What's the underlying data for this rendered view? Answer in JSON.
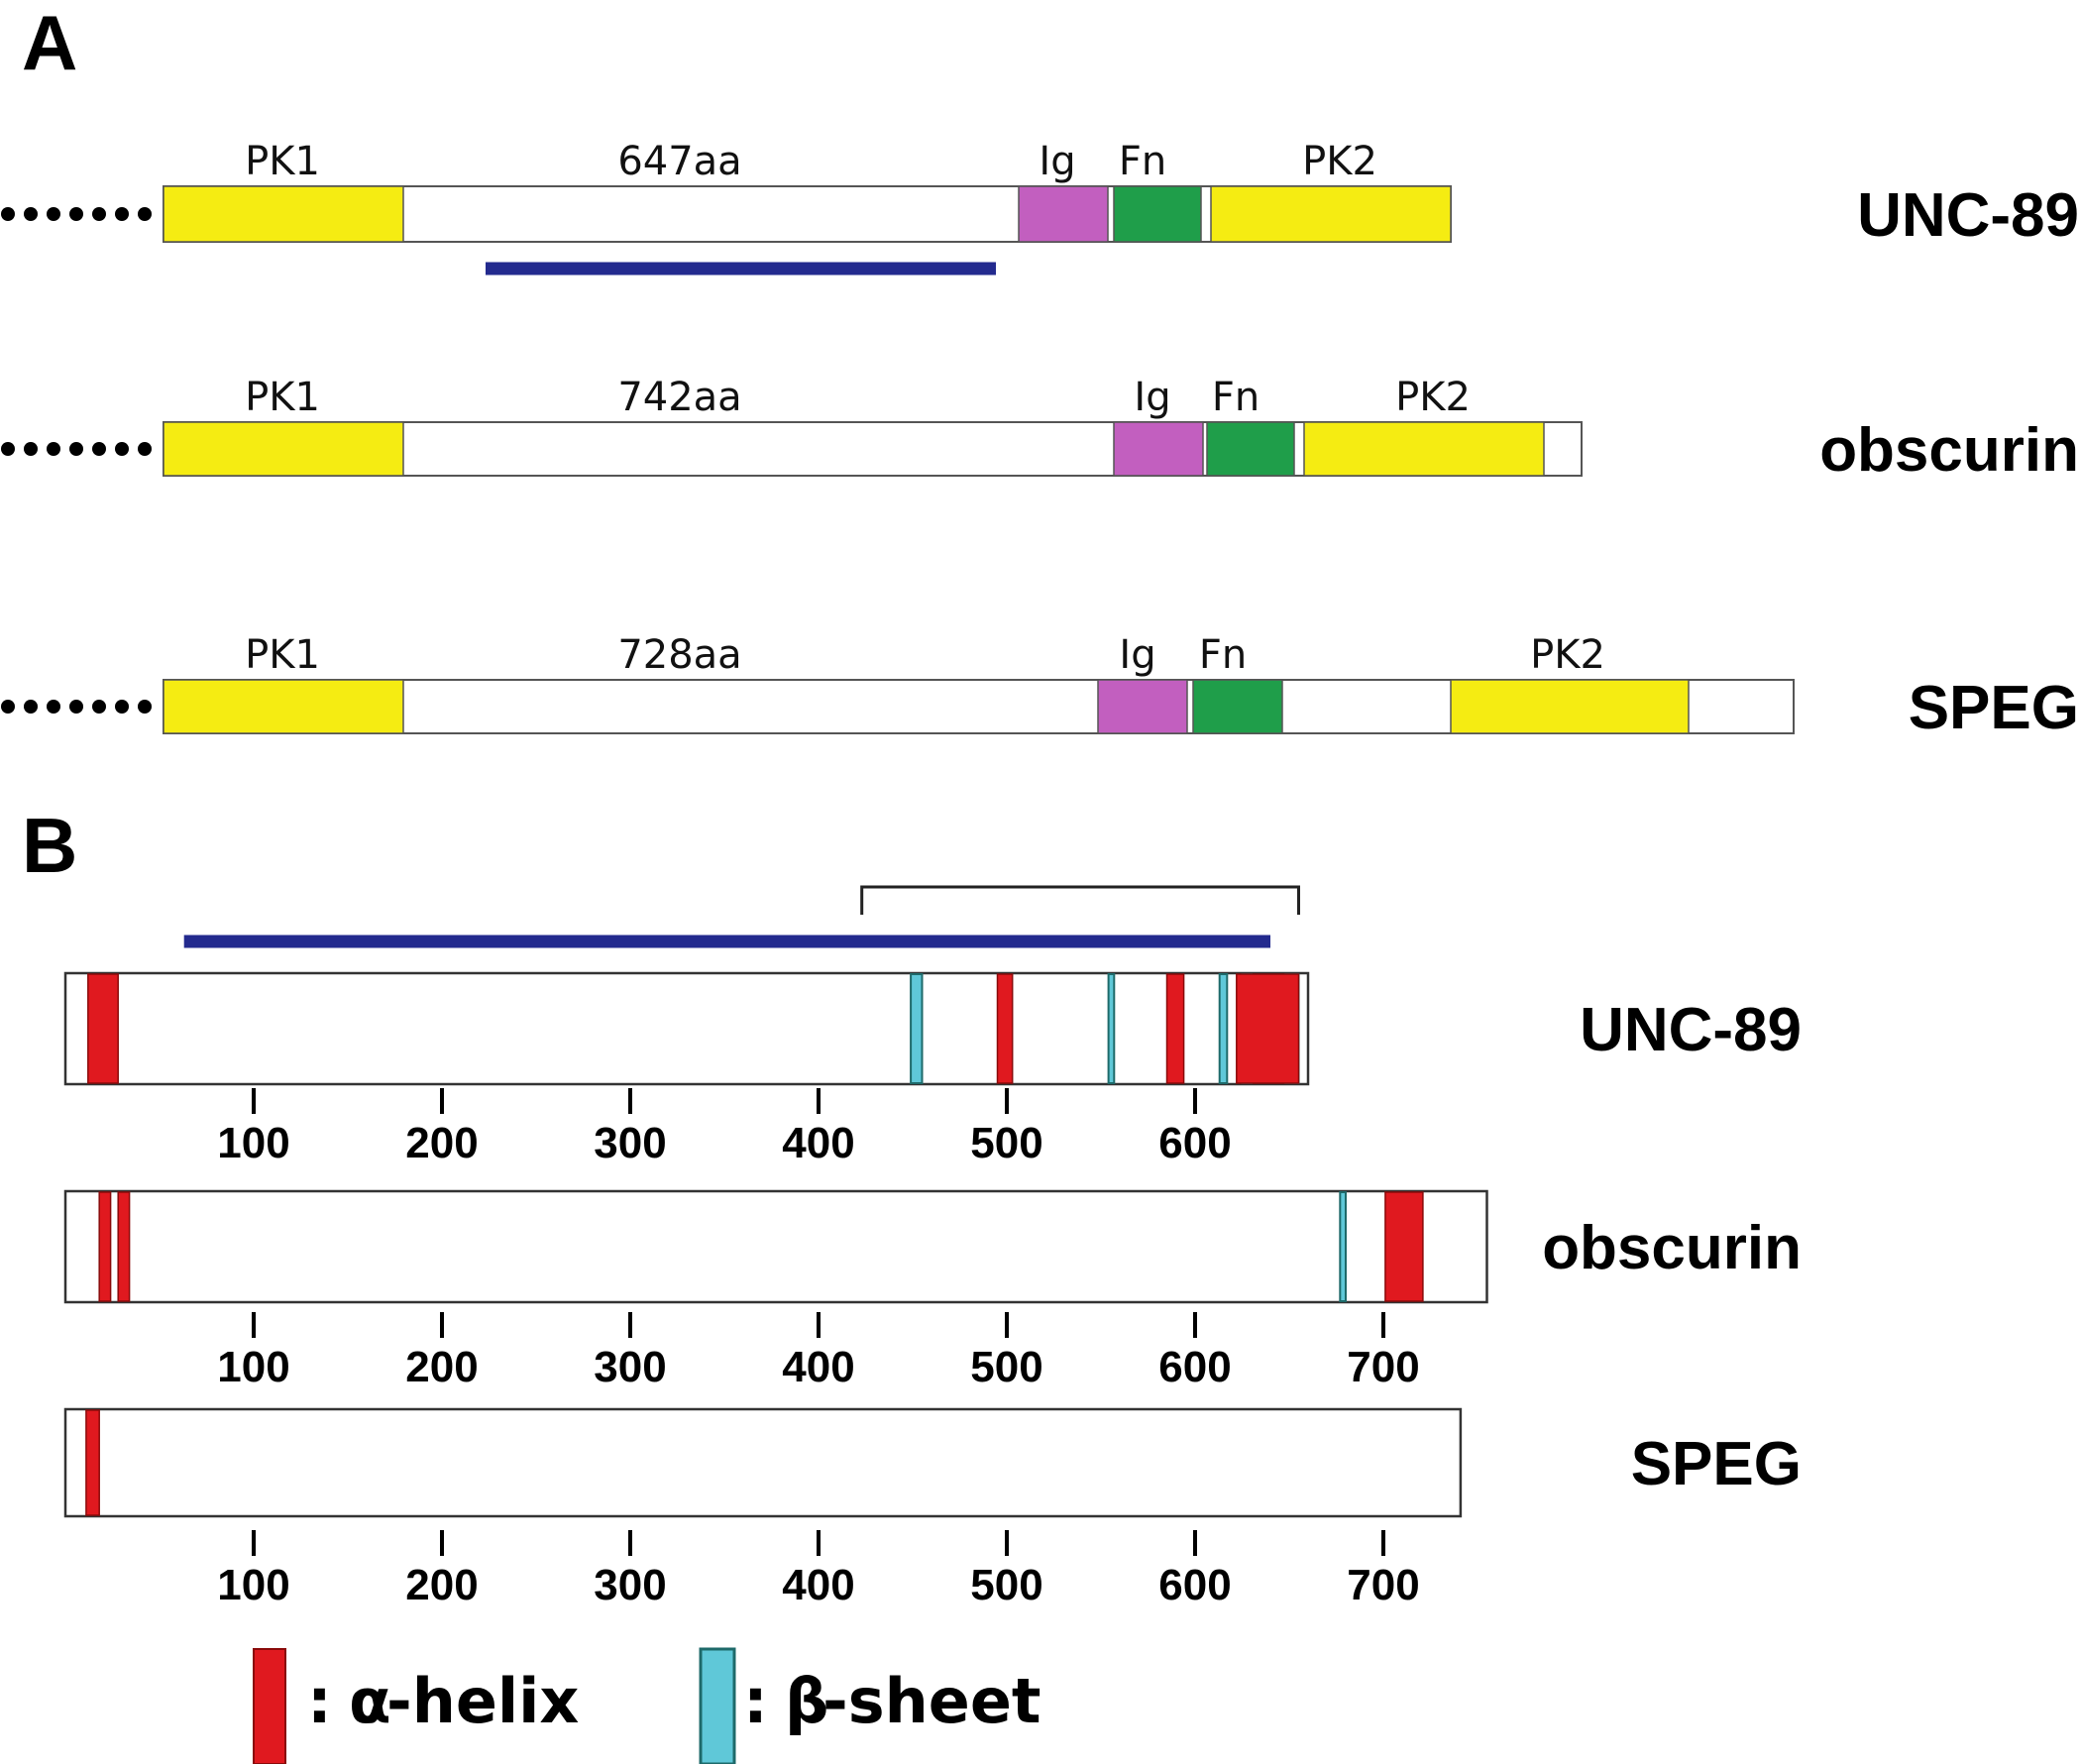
{
  "panels": {
    "a": "A",
    "b": "B"
  },
  "colors": {
    "pk": "#f5ec12",
    "ig": "#c25fbf",
    "fn": "#1f9e4a",
    "blue_line": "#232a8e",
    "helix": "#e0191f",
    "sheet": "#5fc8d8",
    "sheet_edge": "#1e6a6a",
    "outline": "#555555"
  },
  "panel_a": {
    "proteins": [
      {
        "name": "UNC-89",
        "linker_label": "647aa",
        "domains": [
          {
            "type": "pk",
            "label": "PK1"
          },
          {
            "type": "ig",
            "label": "Ig"
          },
          {
            "type": "fn",
            "label": "Fn"
          },
          {
            "type": "pk",
            "label": "PK2"
          }
        ]
      },
      {
        "name": "obscurin",
        "linker_label": "742aa",
        "domains": [
          {
            "type": "pk",
            "label": "PK1"
          },
          {
            "type": "ig",
            "label": "Ig"
          },
          {
            "type": "fn",
            "label": "Fn"
          },
          {
            "type": "pk",
            "label": "PK2"
          }
        ]
      },
      {
        "name": "SPEG",
        "linker_label": "728aa",
        "domains": [
          {
            "type": "pk",
            "label": "PK1"
          },
          {
            "type": "ig",
            "label": "Ig"
          },
          {
            "type": "fn",
            "label": "Fn"
          },
          {
            "type": "pk",
            "label": "PK2"
          }
        ]
      }
    ]
  },
  "panel_b": {
    "axis_range": [
      0,
      750
    ],
    "tick_values": [
      100,
      200,
      300,
      400,
      500,
      600,
      700
    ],
    "tick_labels": [
      "100",
      "200",
      "300",
      "400",
      "500",
      "600",
      "700"
    ],
    "proteins": [
      {
        "name": "UNC-89",
        "length": 660,
        "blue_line": [
          63,
          640
        ],
        "bracket": [
          423,
          655
        ],
        "helices": [
          [
            12,
            28
          ],
          [
            495,
            503
          ],
          [
            585,
            594
          ],
          [
            622,
            655
          ]
        ],
        "sheets": [
          [
            449,
            455
          ],
          [
            554,
            557
          ],
          [
            613,
            617
          ],
          [
            625,
            630
          ],
          [
            648,
            655
          ]
        ]
      },
      {
        "name": "obscurin",
        "length": 755,
        "helices": [
          [
            18,
            24
          ],
          [
            28,
            34
          ],
          [
            701,
            721
          ]
        ],
        "sheets": [
          [
            677,
            680
          ]
        ]
      },
      {
        "name": "SPEG",
        "length": 741,
        "helices": [
          [
            11,
            18
          ]
        ],
        "sheets": []
      }
    ]
  },
  "legend": [
    {
      "type": "helix",
      "symbol": "α",
      "text": "-helix"
    },
    {
      "type": "sheet",
      "symbol": "β",
      "text": "-sheet"
    }
  ]
}
